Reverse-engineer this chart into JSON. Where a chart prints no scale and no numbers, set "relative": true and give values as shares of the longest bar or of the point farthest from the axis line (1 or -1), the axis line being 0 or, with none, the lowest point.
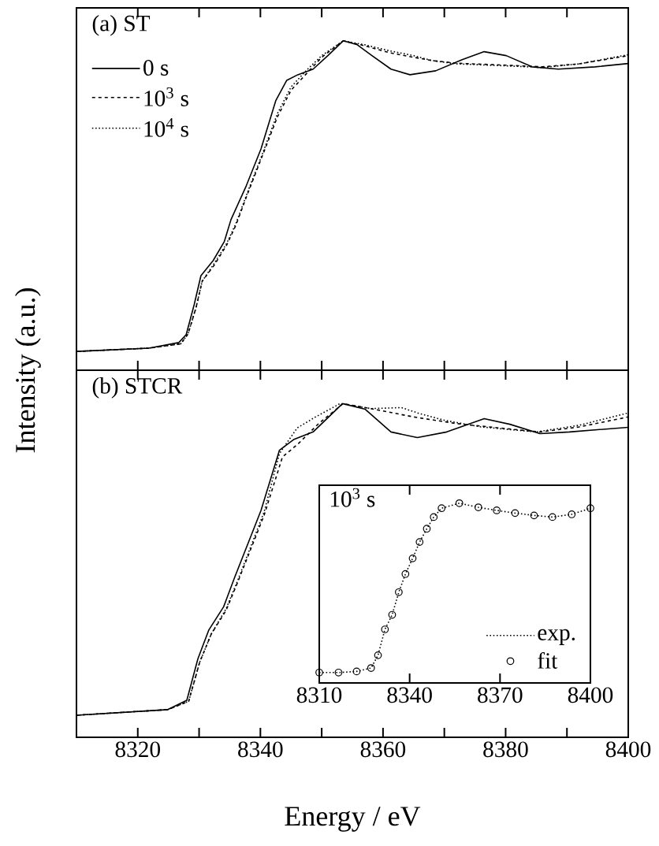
{
  "chart_data": [
    {
      "type": "line",
      "title": "(a) ST",
      "relative": true,
      "xlim": [
        8310,
        8400
      ],
      "xticks": [
        {
          "value": 8310,
          "label": null
        },
        8320,
        {
          "value": 8330,
          "label": null
        },
        8340,
        {
          "value": 8350,
          "label": null
        },
        8360,
        {
          "value": 8370,
          "label": null
        },
        8380,
        {
          "value": 8390,
          "label": null
        },
        8400
      ],
      "tick_labels": false,
      "legend": "top left",
      "series": [
        {
          "name": "0 s",
          "color": "#000000",
          "line_style": "solid",
          "x": [
            8310,
            8321.8,
            8326.7,
            8327.9,
            8329.2,
            8330.3,
            8332.3,
            8334.1,
            8335.2,
            8337.7,
            8340.1,
            8342.5,
            8344.3,
            8346.1,
            8348.6,
            8351.0,
            8353.5,
            8355.8,
            8358.2,
            8361.3,
            8364.4,
            8368.6,
            8372.9,
            8376.5,
            8380.1,
            8384.3,
            8388.6,
            8394.6,
            8400
          ],
          "values": [
            0.057,
            0.067,
            0.084,
            0.108,
            0.199,
            0.287,
            0.333,
            0.39,
            0.457,
            0.56,
            0.672,
            0.818,
            0.88,
            0.897,
            0.914,
            0.955,
            1.0,
            0.988,
            0.955,
            0.914,
            0.897,
            0.909,
            0.943,
            0.967,
            0.955,
            0.921,
            0.914,
            0.921,
            0.931
          ]
        },
        {
          "name": "10$^{3}$ s",
          "color": "#000000",
          "line_style": "dashed",
          "x": [
            8310,
            8321.8,
            8327,
            8328.2,
            8329.5,
            8330.5,
            8332.5,
            8334.5,
            8336,
            8338,
            8340.3,
            8342.8,
            8345,
            8347.5,
            8350,
            8353.5,
            8357,
            8361,
            8365,
            8368,
            8372,
            8380,
            8386,
            8392,
            8400
          ],
          "values": [
            0.057,
            0.067,
            0.08,
            0.11,
            0.19,
            0.27,
            0.32,
            0.38,
            0.44,
            0.54,
            0.65,
            0.77,
            0.85,
            0.9,
            0.95,
            1.0,
            0.985,
            0.964,
            0.95,
            0.94,
            0.932,
            0.926,
            0.921,
            0.93,
            0.955
          ]
        },
        {
          "name": "10$^{4}$ s",
          "color": "#000000",
          "line_style": "dotted",
          "x": [
            8310,
            8321.8,
            8327,
            8328.2,
            8329.5,
            8330.5,
            8332.5,
            8334.5,
            8336,
            8338,
            8340.3,
            8342.8,
            8345,
            8347.5,
            8350,
            8353.5,
            8357,
            8361,
            8365,
            8368,
            8372,
            8380,
            8386,
            8392,
            8400
          ],
          "values": [
            0.057,
            0.067,
            0.08,
            0.11,
            0.19,
            0.27,
            0.325,
            0.385,
            0.445,
            0.545,
            0.655,
            0.78,
            0.86,
            0.91,
            0.955,
            1.0,
            0.988,
            0.97,
            0.955,
            0.94,
            0.93,
            0.924,
            0.919,
            0.93,
            0.958
          ]
        }
      ]
    },
    {
      "type": "line",
      "title": "(b) STCR",
      "relative": true,
      "xlabel": "Energy / eV",
      "ylabel": "Intensity (a.u.)",
      "xlim": [
        8310,
        8400
      ],
      "xticks": [
        {
          "value": 8310,
          "label": null
        },
        8320,
        {
          "value": 8330,
          "label": null
        },
        8340,
        {
          "value": 8350,
          "label": null
        },
        8360,
        {
          "value": 8370,
          "label": null
        },
        8380,
        {
          "value": 8390,
          "label": null
        },
        8400
      ],
      "tick_labels": "x",
      "series": [
        {
          "color": "#000000",
          "line_style": "solid",
          "x": [
            8310,
            8324.9,
            8328.0,
            8329.8,
            8331.6,
            8334.0,
            8335.8,
            8340.1,
            8343.1,
            8345.5,
            8348.6,
            8353.4,
            8357.1,
            8361.3,
            8365.6,
            8370.4,
            8376.5,
            8380.7,
            8385.6,
            8390.4,
            8400
          ],
          "values": [
            0.066,
            0.083,
            0.111,
            0.235,
            0.322,
            0.391,
            0.479,
            0.68,
            0.86,
            0.893,
            0.915,
            1.0,
            0.983,
            0.915,
            0.898,
            0.915,
            0.955,
            0.938,
            0.91,
            0.915,
            0.929
          ]
        },
        {
          "color": "#000000",
          "line_style": "dashed",
          "x": [
            8310,
            8324.9,
            8328.3,
            8330.1,
            8332,
            8334.4,
            8336.3,
            8340.6,
            8343.6,
            8346.2,
            8349.5,
            8353.5,
            8358,
            8365,
            8372,
            8380,
            8385.6,
            8392,
            8400
          ],
          "values": [
            0.066,
            0.083,
            0.108,
            0.225,
            0.31,
            0.38,
            0.465,
            0.665,
            0.84,
            0.88,
            0.94,
            1.0,
            0.985,
            0.96,
            0.94,
            0.925,
            0.915,
            0.93,
            0.96
          ]
        },
        {
          "color": "#000000",
          "line_style": "dotted",
          "x": [
            8310,
            8324.9,
            8328.3,
            8330.1,
            8332,
            8334.4,
            8336.3,
            8340.6,
            8343.1,
            8346,
            8349,
            8353,
            8358,
            8363,
            8366,
            8370,
            8376,
            8385,
            8392,
            8400
          ],
          "values": [
            0.066,
            0.083,
            0.108,
            0.225,
            0.31,
            0.385,
            0.47,
            0.675,
            0.85,
            0.927,
            0.96,
            1.0,
            0.985,
            0.988,
            0.97,
            0.95,
            0.93,
            0.915,
            0.935,
            0.972
          ]
        }
      ]
    },
    {
      "type": "line",
      "title": "10$^{3}$ s",
      "relative": true,
      "xlim": [
        8310,
        8400
      ],
      "xticks": [
        8310,
        8340,
        8370,
        8400
      ],
      "tick_labels": "x",
      "legend": "bottom right",
      "series": [
        {
          "name": "exp.",
          "type": "line",
          "color": "#000000",
          "line_style": "dotted",
          "marker": "none",
          "x": [
            8310,
            8316.4,
            8322.4,
            8327.2,
            8329.5,
            8331.8,
            8334.2,
            8336.4,
            8338.6,
            8341.0,
            8343.3,
            8345.7,
            8348.0,
            8350.6,
            8356.5,
            8362.8,
            8368.9,
            8375.0,
            8381.3,
            8387.4,
            8393.8,
            8400
          ],
          "values": [
            0.058,
            0.058,
            0.064,
            0.083,
            0.154,
            0.298,
            0.379,
            0.505,
            0.606,
            0.693,
            0.784,
            0.858,
            0.923,
            0.972,
            1.0,
            0.977,
            0.96,
            0.945,
            0.932,
            0.923,
            0.938,
            0.972
          ]
        },
        {
          "name": "fit",
          "type": "scatter",
          "color": "#000000",
          "marker": "circle",
          "x": [
            8310,
            8316.4,
            8322.4,
            8327.2,
            8329.5,
            8331.8,
            8334.2,
            8336.4,
            8338.6,
            8341.0,
            8343.3,
            8345.7,
            8348.0,
            8350.6,
            8356.5,
            8362.8,
            8368.9,
            8375.0,
            8381.3,
            8387.4,
            8393.8,
            8400
          ],
          "values": [
            0.058,
            0.058,
            0.064,
            0.083,
            0.154,
            0.298,
            0.379,
            0.505,
            0.606,
            0.693,
            0.784,
            0.858,
            0.923,
            0.972,
            1.0,
            0.977,
            0.96,
            0.945,
            0.932,
            0.923,
            0.938,
            0.972
          ]
        }
      ]
    }
  ]
}
